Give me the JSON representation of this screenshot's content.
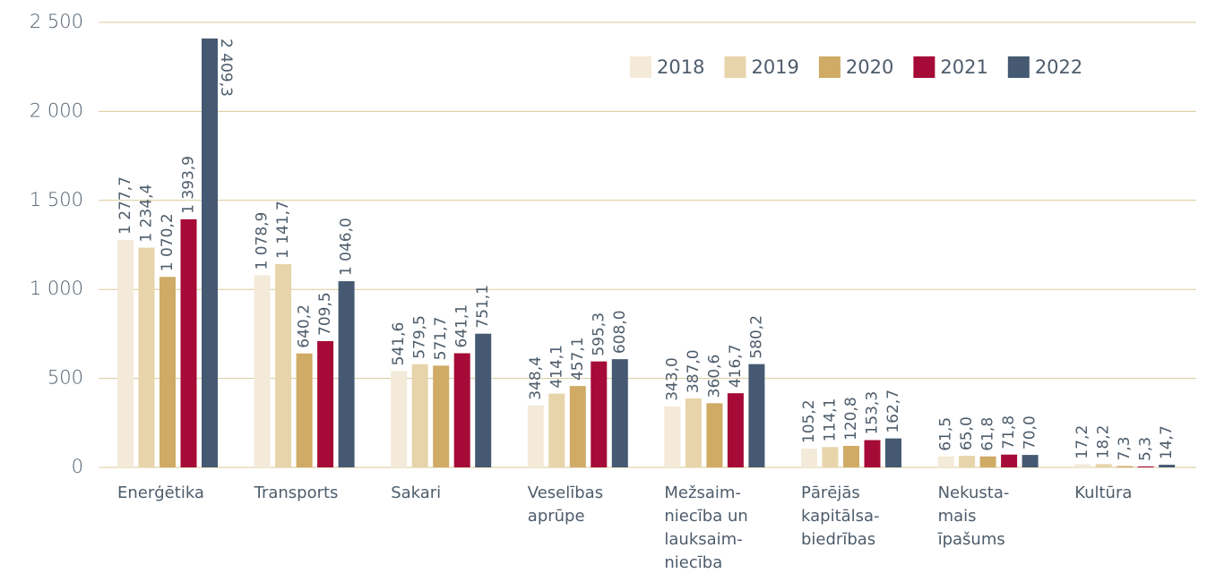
{
  "chart_data": {
    "type": "bar",
    "categories": [
      "Enerģētika",
      "Transports",
      "Sakari",
      "Veselības\naprūpe",
      "Mežsaim-\nniecība un\nlauksaim-\nniecība",
      "Pārējās\nkapitālsa-\nbiedrības",
      "Nekusta-\nmais\nīpašums",
      "Kultūra"
    ],
    "series": [
      {
        "name": "2018",
        "color": "#f3ead9",
        "values": [
          1277.7,
          1078.9,
          541.6,
          348.4,
          343.0,
          105.2,
          61.5,
          17.2
        ],
        "value_labels": [
          "1 277,7",
          "1 078,9",
          "541,6",
          "348,4",
          "343,0",
          "105,2",
          "61,5",
          "17,2"
        ]
      },
      {
        "name": "2019",
        "color": "#e7d4aa",
        "values": [
          1234.4,
          1141.7,
          579.5,
          414.1,
          387.0,
          114.1,
          65.0,
          18.2
        ],
        "value_labels": [
          "1 234,4",
          "1 141,7",
          "579,5",
          "414,1",
          "387,0",
          "114,1",
          "65,0",
          "18,2"
        ]
      },
      {
        "name": "2020",
        "color": "#cfab66",
        "values": [
          1070.2,
          640.2,
          571.7,
          457.1,
          360.6,
          120.8,
          61.8,
          7.3
        ],
        "value_labels": [
          "1 070,2",
          "640,2",
          "571,7",
          "457,1",
          "360,6",
          "120,8",
          "61,8",
          "7,3"
        ]
      },
      {
        "name": "2021",
        "color": "#a50b36",
        "values": [
          1393.9,
          709.5,
          641.1,
          595.3,
          416.7,
          153.3,
          71.8,
          5.3
        ],
        "value_labels": [
          "1 393,9",
          "709,5",
          "641,1",
          "595,3",
          "416,7",
          "153,3",
          "71,8",
          "5,3"
        ]
      },
      {
        "name": "2022",
        "color": "#455a72",
        "values": [
          2409.3,
          1046.0,
          751.1,
          608.0,
          580.2,
          162.7,
          70.0,
          14.7
        ],
        "value_labels": [
          "2 409,3",
          "1 046,0",
          "751,1",
          "608,0",
          "580,2",
          "162,7",
          "70,0",
          "14,7"
        ]
      }
    ],
    "ylim": [
      0,
      2500
    ],
    "yticks": [
      0,
      500,
      {
        "value": 1000,
        "label": "1 000"
      },
      {
        "value": 1500,
        "label": "1 500"
      },
      {
        "value": 2000,
        "label": "2 000"
      },
      {
        "value": 2500,
        "label": "2 500"
      }
    ],
    "grid": true,
    "legend": "top-right"
  }
}
